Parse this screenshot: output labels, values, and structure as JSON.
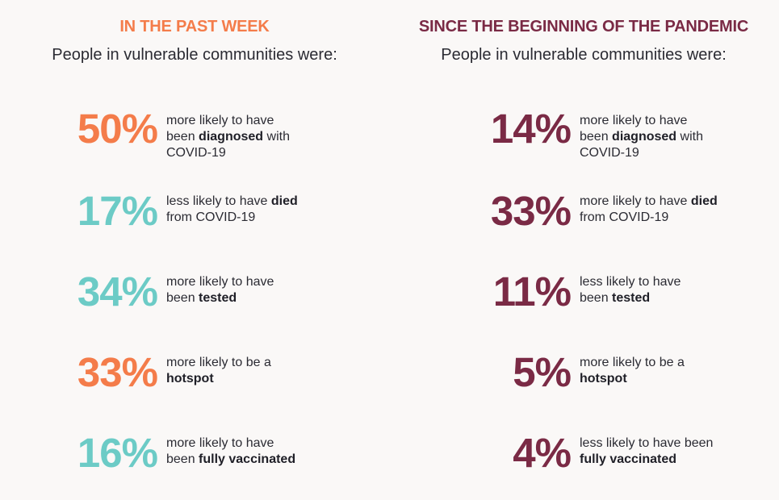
{
  "colors": {
    "orange": "#f47c4a",
    "teal": "#6ccbc6",
    "maroon": "#7a2a45",
    "text": "#2b2b33",
    "background": "#faf8f7"
  },
  "left": {
    "heading": "IN THE PAST WEEK",
    "subheading": "People in vulnerable communities were:",
    "stats": [
      {
        "value": "50%",
        "color": "orange",
        "pre": "more likely to have been ",
        "bold": "diagnosed",
        "post": " with COVID-19"
      },
      {
        "value": "17%",
        "color": "teal",
        "pre": "less likely to have ",
        "bold": "died",
        "post": " from COVID-19"
      },
      {
        "value": "34%",
        "color": "teal",
        "pre": "more likely to have been ",
        "bold": "tested",
        "post": ""
      },
      {
        "value": "33%",
        "color": "orange",
        "pre": "more likely to be a ",
        "bold": "hotspot",
        "post": ""
      },
      {
        "value": "16%",
        "color": "teal",
        "pre": "more likely to have been ",
        "bold": "fully vaccinated",
        "post": ""
      }
    ]
  },
  "right": {
    "heading": "SINCE THE BEGINNING OF THE PANDEMIC",
    "subheading": "People in vulnerable communities were:",
    "stats": [
      {
        "value": "14%",
        "color": "maroon",
        "pre": "more likely to have been ",
        "bold": "diagnosed",
        "post": " with COVID-19"
      },
      {
        "value": "33%",
        "color": "maroon",
        "pre": "more likely to have ",
        "bold": "died",
        "post": " from COVID-19"
      },
      {
        "value": "11%",
        "color": "maroon",
        "pre": "less likely to have been ",
        "bold": "tested",
        "post": ""
      },
      {
        "value": "5%",
        "color": "maroon",
        "pre": "more likely to be a ",
        "bold": "hotspot",
        "post": ""
      },
      {
        "value": "4%",
        "color": "maroon",
        "pre": "less likely to have been ",
        "bold": "fully vaccinated",
        "post": ""
      }
    ]
  }
}
